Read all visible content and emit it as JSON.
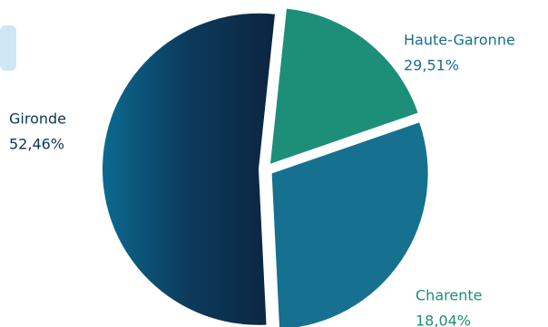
{
  "chart_data": {
    "type": "pie",
    "categories": [
      "Charente",
      "Haute-Garonne",
      "Gironde"
    ],
    "values": [
      18.04,
      29.51,
      52.46
    ],
    "value_labels": [
      "18,04%",
      "29,51%",
      "52,46%"
    ],
    "colors": [
      "#1d8f78",
      "#15718f",
      "#0b3556"
    ]
  }
}
